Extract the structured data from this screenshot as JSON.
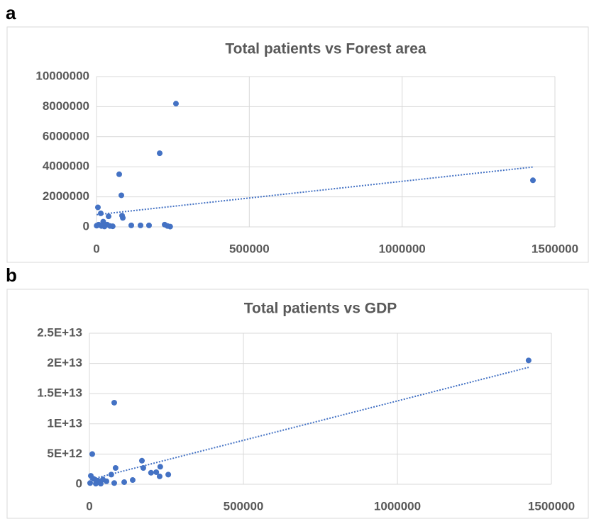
{
  "chart_data": [
    {
      "type": "scatter",
      "label": "a",
      "title": "Total patients vs Forest area",
      "color": "#4472c4",
      "trendline": "linear",
      "grid": true,
      "x": [
        260000,
        206700,
        74300,
        81300,
        83600,
        86000,
        4600,
        14000,
        39500,
        1428000,
        500,
        7000,
        16000,
        26000,
        35000,
        44000,
        22000,
        53000,
        113800,
        144000,
        171800,
        223000,
        232000,
        241000
      ],
      "values": [
        8200000,
        4900000,
        3500000,
        2100000,
        750000,
        600000,
        1300000,
        900000,
        700000,
        3100000,
        80000,
        150000,
        60000,
        30000,
        150000,
        60000,
        350000,
        40000,
        100000,
        100000,
        100000,
        150000,
        60000,
        20000
      ],
      "xlim": [
        0,
        1500000
      ],
      "xticks": [
        0,
        500000,
        1000000,
        1500000
      ],
      "ylim": [
        0,
        10000000
      ],
      "yticks": [
        0,
        2000000,
        4000000,
        6000000,
        8000000,
        10000000
      ]
    },
    {
      "type": "scatter",
      "label": "b",
      "title": "Total patients vs GDP",
      "color": "#4472c4",
      "trendline": "linear",
      "grid": true,
      "x": [
        1426000,
        80600,
        9200,
        170500,
        175000,
        85000,
        230000,
        71000,
        256000,
        200000,
        217000,
        228000,
        140500,
        113000,
        80600,
        4600,
        13800,
        27600,
        43800,
        55300,
        2300,
        20700,
        36900
      ],
      "values": [
        20500000000000,
        13500000000000,
        5000000000000,
        3900000000000,
        2700000000000,
        2700000000000,
        2900000000000,
        1600000000000,
        1600000000000,
        1900000000000,
        2000000000000,
        1300000000000,
        700000000000,
        350000000000,
        200000000000,
        1400000000000,
        900000000000,
        600000000000,
        800000000000,
        500000000000,
        200000000000,
        100000000000,
        100000000000
      ],
      "xlim": [
        0,
        1500000
      ],
      "xticks": [
        0,
        500000,
        1000000,
        1500000
      ],
      "ylim": [
        0,
        25000000000000
      ],
      "yticks": [
        0,
        {
          "value": 5000000000000,
          "label": "5E+12"
        },
        {
          "value": 10000000000000,
          "label": "1E+13"
        },
        {
          "value": 15000000000000,
          "label": "1.5E+13"
        },
        {
          "value": 20000000000000,
          "label": "2E+13"
        },
        {
          "value": 25000000000000,
          "label": "2.5E+13"
        }
      ]
    }
  ]
}
